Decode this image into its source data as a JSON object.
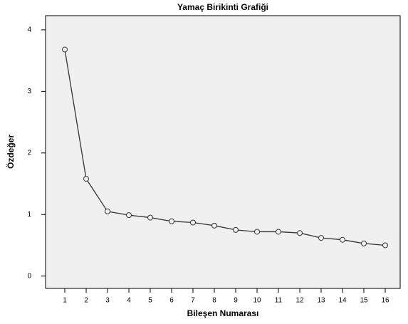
{
  "chart_data": {
    "type": "line",
    "title": "Yamaç Birikinti Grafiği",
    "x_label": "Bileşen Numarası",
    "y_label": "Özdeğer",
    "x": [
      1,
      2,
      3,
      4,
      5,
      6,
      7,
      8,
      9,
      10,
      11,
      12,
      13,
      14,
      15,
      16
    ],
    "series": [
      {
        "color": "#333333",
        "values": [
          3.68,
          1.58,
          1.05,
          0.99,
          0.95,
          0.89,
          0.87,
          0.82,
          0.75,
          0.72,
          0.72,
          0.7,
          0.62,
          0.59,
          0.53,
          0.5
        ]
      }
    ],
    "xlim": [
      0.1,
      16.7
    ],
    "xticks": [
      1,
      2,
      3,
      4,
      5,
      6,
      7,
      8,
      9,
      10,
      11,
      12,
      13,
      14,
      15,
      16
    ],
    "ylim": [
      -0.2,
      4.23
    ],
    "yticks": [
      0,
      1,
      2,
      3,
      4
    ],
    "markers": true,
    "plot_background": "#f0f0f0"
  }
}
